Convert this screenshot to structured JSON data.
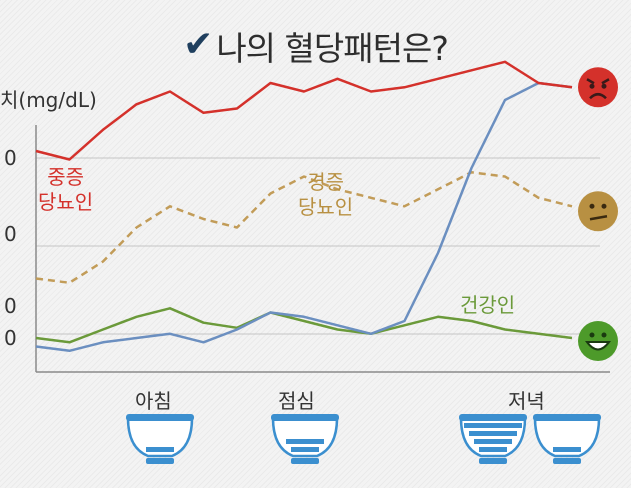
{
  "title": "나의 혈당패턴은?",
  "check_glyph": "✔",
  "chart_data": {
    "type": "line",
    "ylabel": "치(mg/dL)",
    "y_ticks": [
      "0",
      "0",
      "0",
      "0"
    ],
    "x": [
      0,
      1,
      2,
      3,
      4,
      5,
      6,
      7,
      8,
      9,
      10,
      11,
      12,
      13,
      14,
      15,
      16
    ],
    "x_axis_labels": [
      "아침",
      "점심",
      "저녁"
    ],
    "series": [
      {
        "name": "중증 당뇨인",
        "label_lines": [
          "중증",
          "당뇨인"
        ],
        "color": "#d4312b",
        "style": "solid",
        "values": [
          320,
          310,
          345,
          375,
          390,
          365,
          370,
          400,
          390,
          405,
          390,
          395,
          405,
          415,
          425,
          400,
          395
        ],
        "face": "sad",
        "face_color": "#d4312b"
      },
      {
        "name": "경증 당뇨인",
        "label_lines": [
          "경증",
          "당뇨인"
        ],
        "color": "#c29c58",
        "style": "dashed",
        "values": [
          170,
          165,
          190,
          230,
          255,
          240,
          230,
          270,
          290,
          275,
          265,
          255,
          275,
          295,
          290,
          265,
          255
        ],
        "face": "neutral",
        "face_color": "#b89042"
      },
      {
        "name": "건강인",
        "label_lines": [
          "건강인"
        ],
        "color": "#6b9a3a",
        "style": "solid",
        "values": [
          100,
          95,
          110,
          125,
          135,
          118,
          112,
          130,
          120,
          110,
          105,
          115,
          125,
          120,
          110,
          105,
          100
        ],
        "face": "happy",
        "face_color": "#4d9a2a"
      },
      {
        "name": "",
        "color": "#6b8fc0",
        "style": "solid",
        "values": [
          90,
          85,
          95,
          100,
          105,
          95,
          110,
          130,
          125,
          115,
          105,
          120,
          200,
          300,
          380,
          400,
          395
        ],
        "face": "",
        "face_color": ""
      }
    ],
    "meals": [
      {
        "label": "아침",
        "bowls": [
          {
            "fill": 0.35
          }
        ]
      },
      {
        "label": "점심",
        "bowls": [
          {
            "fill": 0.6
          }
        ]
      },
      {
        "label": "저녁",
        "bowls": [
          {
            "fill": 1.0
          },
          {
            "fill": 0.25
          }
        ]
      }
    ],
    "grid": true
  }
}
